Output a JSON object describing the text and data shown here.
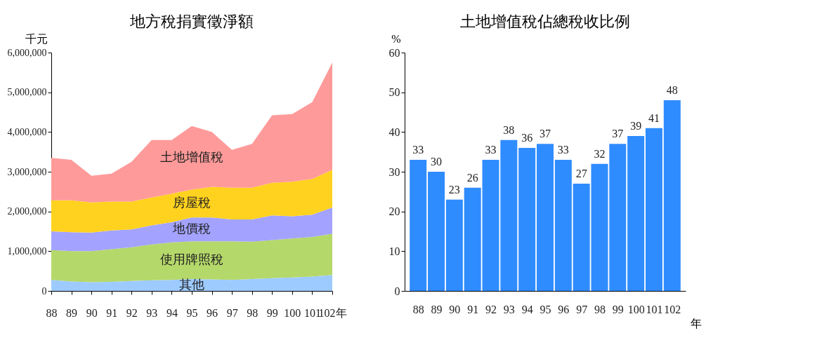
{
  "chart_data": [
    {
      "type": "area",
      "title": "地方稅捐實徵淨額",
      "ylabel": "千元",
      "stacked": true,
      "legend": false,
      "grid": false,
      "x": [
        88,
        89,
        90,
        91,
        92,
        93,
        94,
        95,
        96,
        97,
        98,
        99,
        100,
        101,
        102
      ],
      "xlim": [
        88,
        102
      ],
      "xticks": [
        88,
        89,
        90,
        91,
        92,
        93,
        94,
        95,
        96,
        97,
        98,
        99,
        100,
        101,
        {
          "value": 102,
          "label": "102年"
        }
      ],
      "ylim": [
        0,
        6000000
      ],
      "yticks": [
        0,
        {
          "value": 1000000,
          "label": "1,000,000"
        },
        {
          "value": 2000000,
          "label": "2,000,000"
        },
        {
          "value": 3000000,
          "label": "3,000,000"
        },
        {
          "value": 4000000,
          "label": "4,000,000"
        },
        {
          "value": 5000000,
          "label": "5,000,000"
        },
        {
          "value": 6000000,
          "label": "6,000,000"
        }
      ],
      "series": [
        {
          "name": "其他",
          "color": "#9ecbff",
          "values": [
            280000,
            240000,
            220000,
            230000,
            250000,
            270000,
            280000,
            300000,
            290000,
            280000,
            300000,
            320000,
            340000,
            360000,
            400000
          ]
        },
        {
          "name": "使用牌照稅",
          "color": "#b5d86a",
          "values": [
            750000,
            760000,
            780000,
            820000,
            850000,
            900000,
            940000,
            950000,
            960000,
            970000,
            940000,
            960000,
            980000,
            1000000,
            1040000
          ]
        },
        {
          "name": "地價稅",
          "color": "#a3a3ff",
          "values": [
            470000,
            480000,
            470000,
            470000,
            450000,
            480000,
            510000,
            600000,
            600000,
            550000,
            560000,
            620000,
            560000,
            560000,
            660000
          ]
        },
        {
          "name": "房屋稅",
          "color": "#ffd21f",
          "values": [
            780000,
            800000,
            760000,
            730000,
            700000,
            700000,
            720000,
            700000,
            770000,
            800000,
            800000,
            820000,
            870000,
            900000,
            950000
          ]
        },
        {
          "name": "土地增值稅",
          "color": "#ff9a9a",
          "values": [
            1070000,
            1020000,
            670000,
            700000,
            1000000,
            1450000,
            1350000,
            1600000,
            1380000,
            950000,
            1100000,
            1700000,
            1700000,
            1930000,
            2700000
          ]
        }
      ]
    },
    {
      "type": "bar",
      "title": "土地增值稅佔總稅收比例",
      "ylabel": "%",
      "xlabel": "年",
      "grid": false,
      "data_labels": true,
      "color": "#2f8cff",
      "categories": [
        "88",
        "89",
        "90",
        "91",
        "92",
        "93",
        "94",
        "95",
        "96",
        "97",
        "98",
        "99",
        "100",
        "101",
        "102"
      ],
      "values": [
        33,
        30,
        23,
        26,
        33,
        38,
        36,
        37,
        33,
        27,
        32,
        37,
        39,
        41,
        48
      ],
      "ylim": [
        0,
        60
      ],
      "yticks": [
        0,
        10,
        20,
        30,
        40,
        50,
        60
      ]
    }
  ]
}
